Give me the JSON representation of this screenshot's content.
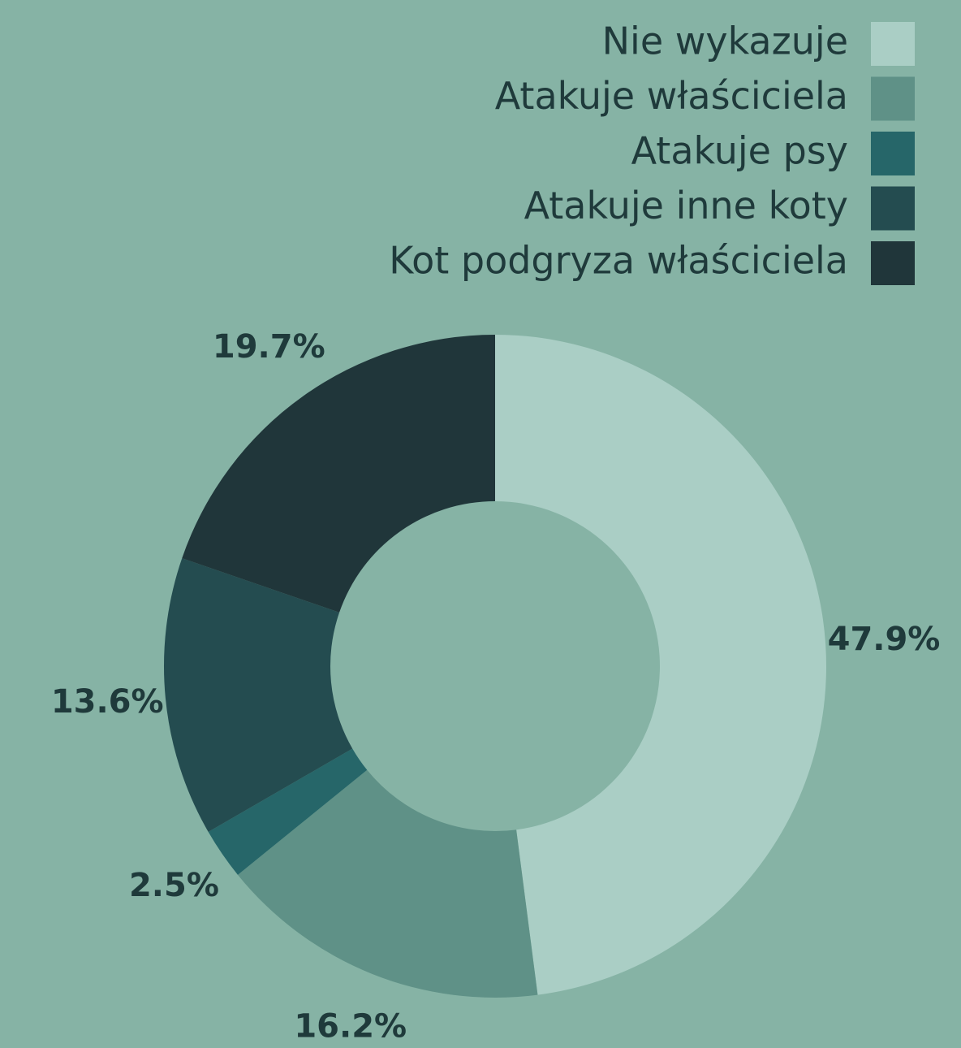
{
  "chart_data": {
    "type": "donut",
    "categories": [
      "Nie wykazuje",
      "Atakuje właściciela",
      "Atakuje psy",
      "Atakuje inne koty",
      "Kot podgryza właściciela"
    ],
    "values": [
      47.9,
      16.2,
      2.5,
      13.6,
      19.7
    ],
    "value_labels": [
      "47.9%",
      "16.2%",
      "2.5%",
      "13.6%",
      "19.7%"
    ],
    "colors": [
      "#aacec5",
      "#5f9187",
      "#266669",
      "#244c50",
      "#20363a"
    ],
    "legend": "top-right"
  }
}
